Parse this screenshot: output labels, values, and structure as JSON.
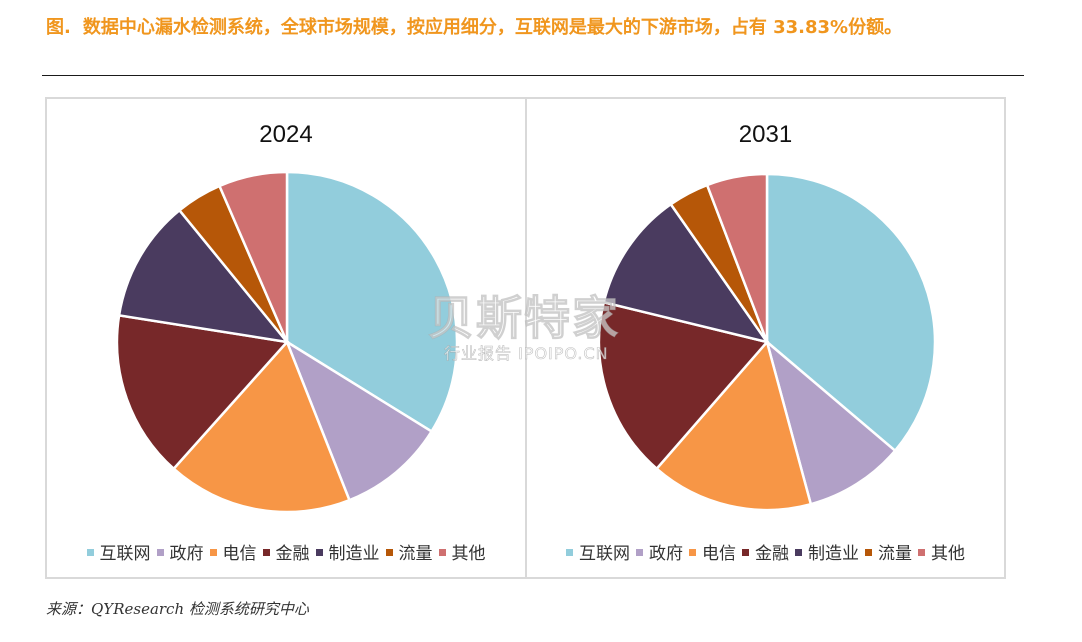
{
  "figure": {
    "label": "图.",
    "title": "数据中心漏水检测系统，全球市场规模，按应用细分，互联网是最大的下游市场，占有 33.83%份额。",
    "source": "来源：QYResearch 检测系统研究中心"
  },
  "watermark": {
    "main": "贝斯特家",
    "sub": "行业报告 IPOIPO.CN"
  },
  "chart_data": [
    {
      "type": "pie",
      "title": "2024",
      "legend_position": "bottom",
      "categories": [
        "互联网",
        "政府",
        "电信",
        "金融",
        "制造业",
        "流量",
        "其他"
      ],
      "values": [
        33.83,
        10.2,
        17.6,
        15.9,
        11.6,
        4.4,
        6.5
      ],
      "colors": [
        "#92CDDC",
        "#B1A0C7",
        "#F79646",
        "#772829",
        "#4A3B5F",
        "#B65708",
        "#CF7070"
      ]
    },
    {
      "type": "pie",
      "title": "2031",
      "legend_position": "bottom",
      "categories": [
        "互联网",
        "政府",
        "电信",
        "金融",
        "制造业",
        "流量",
        "其他"
      ],
      "values": [
        36.2,
        9.6,
        15.6,
        17.4,
        11.5,
        3.9,
        5.8
      ],
      "colors": [
        "#92CDDC",
        "#B1A0C7",
        "#F79646",
        "#772829",
        "#4A3B5F",
        "#B65708",
        "#CF7070"
      ]
    }
  ]
}
